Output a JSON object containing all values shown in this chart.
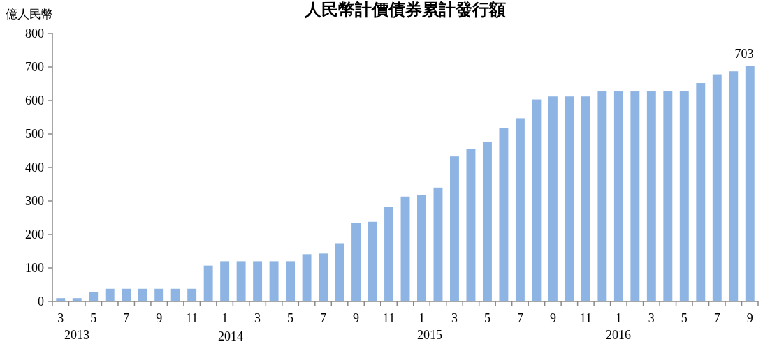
{
  "chart_data": {
    "type": "bar",
    "title": "人民幣計價債券累計發行額",
    "ylabel": "億人民幣",
    "categories": [
      "3",
      null,
      "5",
      null,
      "7",
      null,
      "9",
      null,
      "11",
      null,
      "1",
      null,
      "3",
      null,
      "5",
      null,
      "7",
      null,
      "9",
      null,
      "11",
      null,
      "1",
      null,
      "3",
      null,
      "5",
      null,
      "7",
      null,
      "9",
      null,
      "11",
      null,
      "1",
      null,
      "3",
      null,
      "5",
      null,
      "7",
      null,
      "9"
    ],
    "values": [
      10,
      10,
      29,
      38,
      38,
      38,
      38,
      38,
      38,
      107,
      120,
      120,
      120,
      120,
      120,
      141,
      143,
      174,
      234,
      238,
      283,
      313,
      318,
      340,
      433,
      456,
      475,
      517,
      547,
      603,
      612,
      612,
      612,
      627,
      627,
      627,
      627,
      629,
      629,
      652,
      678,
      687,
      703
    ],
    "value_labels": [
      null,
      null,
      null,
      null,
      null,
      null,
      null,
      null,
      null,
      null,
      null,
      null,
      null,
      null,
      null,
      null,
      null,
      null,
      null,
      null,
      null,
      null,
      null,
      null,
      null,
      null,
      null,
      null,
      null,
      null,
      null,
      null,
      null,
      null,
      null,
      null,
      null,
      null,
      null,
      null,
      null,
      null,
      "703"
    ],
    "color": "#8eb4e3",
    "ylim": [
      0,
      800
    ],
    "yticks": [
      0,
      100,
      200,
      300,
      400,
      500,
      600,
      700,
      800
    ],
    "annotations": [
      "2013",
      "2014",
      "2015",
      "2016"
    ]
  }
}
